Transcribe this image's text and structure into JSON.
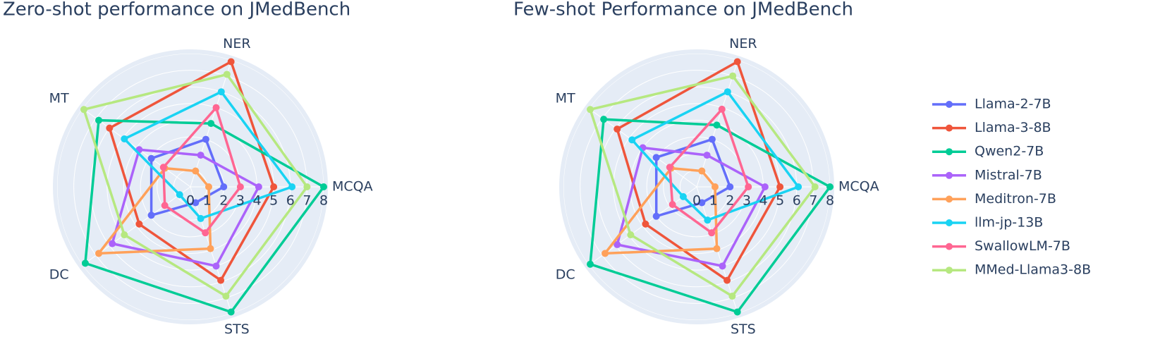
{
  "chart_data": [
    {
      "type": "radar",
      "title": "Zero-shot performance on JMedBench",
      "categories": [
        "MCQA",
        "NER",
        "MT",
        "DC",
        "STS"
      ],
      "rlim": [
        0,
        8
      ],
      "rticks": [
        0,
        1,
        2,
        3,
        4,
        5,
        6,
        7,
        8
      ],
      "grid": true,
      "series": [
        {
          "name": "Llama-2-7B",
          "color": "#636efa",
          "values": [
            2.0,
            3.0,
            2.9,
            2.9,
            1.0
          ]
        },
        {
          "name": "Llama-3-8B",
          "color": "#EF553B",
          "values": [
            5.0,
            7.9,
            6.0,
            3.8,
            5.9
          ]
        },
        {
          "name": "Qwen2-7B",
          "color": "#00cc96",
          "values": [
            8.0,
            4.0,
            6.8,
            7.8,
            7.9
          ]
        },
        {
          "name": "Mistral-7B",
          "color": "#ab63fa",
          "values": [
            4.1,
            2.0,
            3.8,
            5.8,
            5.0
          ]
        },
        {
          "name": "Meditron-7B",
          "color": "#FFA15A",
          "values": [
            1.1,
            1.0,
            1.9,
            6.8,
            3.9
          ]
        },
        {
          "name": "llm-jp-13B",
          "color": "#19d3f3",
          "values": [
            6.1,
            6.0,
            4.9,
            0.8,
            2.0
          ]
        },
        {
          "name": "SwallowLM-7B",
          "color": "#FF6692",
          "values": [
            3.0,
            5.0,
            2.0,
            1.9,
            2.9
          ]
        },
        {
          "name": "MMed-Llama3-8B",
          "color": "#B6E880",
          "values": [
            7.0,
            7.1,
            7.9,
            4.9,
            6.9
          ]
        }
      ]
    },
    {
      "type": "radar",
      "title": "Few-shot Performance on JMedBench",
      "categories": [
        "MCQA",
        "NER",
        "MT",
        "DC",
        "STS"
      ],
      "rlim": [
        0,
        8
      ],
      "rticks": [
        0,
        1,
        2,
        3,
        4,
        5,
        6,
        7,
        8
      ],
      "grid": true,
      "series": [
        {
          "color": "#636efa",
          "values": [
            2.0,
            3.0,
            3.0,
            3.0,
            1.0
          ]
        },
        {
          "color": "#EF553B",
          "values": [
            5.0,
            7.9,
            5.9,
            3.8,
            5.9
          ]
        },
        {
          "color": "#00cc96",
          "values": [
            8.0,
            3.9,
            6.9,
            7.9,
            7.9
          ]
        },
        {
          "color": "#ab63fa",
          "values": [
            4.1,
            2.0,
            4.0,
            5.9,
            5.0
          ]
        },
        {
          "color": "#FFA15A",
          "values": [
            1.1,
            1.0,
            1.9,
            6.8,
            3.9
          ]
        },
        {
          "color": "#19d3f3",
          "values": [
            6.1,
            6.0,
            4.8,
            1.0,
            2.1
          ]
        },
        {
          "color": "#FF6692",
          "values": [
            3.1,
            4.9,
            2.0,
            1.8,
            2.9
          ]
        },
        {
          "color": "#B6E880",
          "values": [
            7.1,
            7.0,
            7.9,
            4.9,
            6.9
          ]
        }
      ]
    }
  ]
}
